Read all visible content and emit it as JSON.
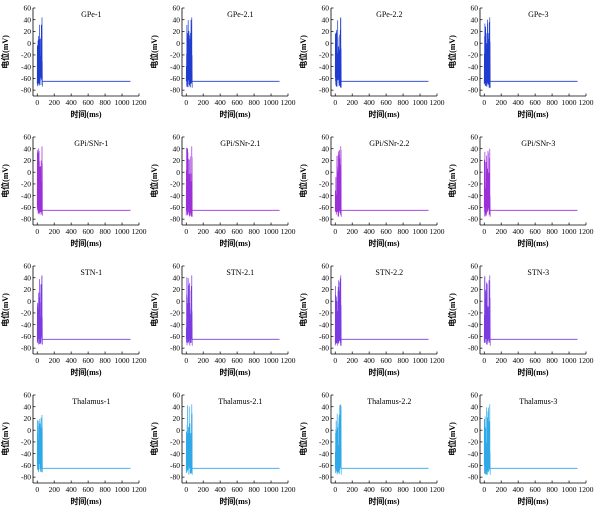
{
  "figure": {
    "xlabel": "时间(ms)",
    "ylabel": "电位(mV)",
    "xticks": [
      0,
      200,
      400,
      600,
      800,
      1000,
      1200
    ],
    "yticks": [
      60,
      40,
      20,
      0,
      -20,
      -40,
      -60,
      -80
    ],
    "xlim": [
      -50,
      1200
    ],
    "ylim": [
      -90,
      60
    ]
  },
  "chart_data": [
    {
      "type": "line",
      "title": "GPe-1",
      "xlabel": "时间(ms)",
      "ylabel": "电位(mV)",
      "xlim": [
        -50,
        1200
      ],
      "ylim": [
        -90,
        60
      ],
      "color": "#1f3ccf",
      "series": [
        {
          "burst_x": [
            0,
            60
          ],
          "burst_max": 44,
          "burst_min": -74,
          "steady_x": [
            60,
            1100
          ],
          "steady_value": -65
        }
      ]
    },
    {
      "type": "line",
      "title": "GPe-2.1",
      "xlabel": "时间(ms)",
      "ylabel": "电位(mV)",
      "xlim": [
        -50,
        1200
      ],
      "ylim": [
        -90,
        60
      ],
      "color": "#1f3ccf",
      "series": [
        {
          "burst_x": [
            0,
            70
          ],
          "burst_max": 44,
          "burst_min": -76,
          "steady_x": [
            70,
            1100
          ],
          "steady_value": -65
        }
      ]
    },
    {
      "type": "line",
      "title": "GPe-2.2",
      "xlabel": "时间(ms)",
      "ylabel": "电位(mV)",
      "xlim": [
        -50,
        1200
      ],
      "ylim": [
        -90,
        60
      ],
      "color": "#1f3ccf",
      "series": [
        {
          "burst_x": [
            0,
            70
          ],
          "burst_max": 44,
          "burst_min": -76,
          "steady_x": [
            70,
            1100
          ],
          "steady_value": -65
        }
      ]
    },
    {
      "type": "line",
      "title": "GPe-3",
      "xlabel": "时间(ms)",
      "ylabel": "电位(mV)",
      "xlim": [
        -50,
        1200
      ],
      "ylim": [
        -90,
        60
      ],
      "color": "#1f3ccf",
      "series": [
        {
          "burst_x": [
            0,
            70
          ],
          "burst_max": 44,
          "burst_min": -76,
          "steady_x": [
            70,
            1100
          ],
          "steady_value": -65
        }
      ]
    },
    {
      "type": "line",
      "title": "GPi/SNr-1",
      "xlabel": "时间(ms)",
      "ylabel": "电位(mV)",
      "xlim": [
        -50,
        1200
      ],
      "ylim": [
        -90,
        60
      ],
      "color": "#9b30d9",
      "series": [
        {
          "burst_x": [
            0,
            60
          ],
          "burst_max": 44,
          "burst_min": -74,
          "steady_x": [
            60,
            1100
          ],
          "steady_value": -65
        }
      ]
    },
    {
      "type": "line",
      "title": "GPi/SNr-2.1",
      "xlabel": "时间(ms)",
      "ylabel": "电位(mV)",
      "xlim": [
        -50,
        1200
      ],
      "ylim": [
        -90,
        60
      ],
      "color": "#9b30d9",
      "series": [
        {
          "burst_x": [
            0,
            70
          ],
          "burst_max": 44,
          "burst_min": -76,
          "steady_x": [
            70,
            1100
          ],
          "steady_value": -65
        }
      ]
    },
    {
      "type": "line",
      "title": "GPi/SNr-2.2",
      "xlabel": "时间(ms)",
      "ylabel": "电位(mV)",
      "xlim": [
        -50,
        1200
      ],
      "ylim": [
        -90,
        60
      ],
      "color": "#9b30d9",
      "series": [
        {
          "burst_x": [
            0,
            70
          ],
          "burst_max": 44,
          "burst_min": -76,
          "steady_x": [
            70,
            1100
          ],
          "steady_value": -65
        }
      ]
    },
    {
      "type": "line",
      "title": "GPi/SNr-3",
      "xlabel": "时间(ms)",
      "ylabel": "电位(mV)",
      "xlim": [
        -50,
        1200
      ],
      "ylim": [
        -90,
        60
      ],
      "color": "#9b30d9",
      "series": [
        {
          "burst_x": [
            0,
            70
          ],
          "burst_max": 40,
          "burst_min": -76,
          "steady_x": [
            70,
            1100
          ],
          "steady_value": -65
        }
      ]
    },
    {
      "type": "line",
      "title": "STN-1",
      "xlabel": "时间(ms)",
      "ylabel": "电位(mV)",
      "xlim": [
        -50,
        1200
      ],
      "ylim": [
        -90,
        60
      ],
      "color": "#7a3be0",
      "series": [
        {
          "burst_x": [
            0,
            60
          ],
          "burst_max": 44,
          "burst_min": -74,
          "steady_x": [
            60,
            1100
          ],
          "steady_value": -65
        }
      ]
    },
    {
      "type": "line",
      "title": "STN-2.1",
      "xlabel": "时间(ms)",
      "ylabel": "电位(mV)",
      "xlim": [
        -50,
        1200
      ],
      "ylim": [
        -90,
        60
      ],
      "color": "#7a3be0",
      "series": [
        {
          "burst_x": [
            0,
            70
          ],
          "burst_max": 44,
          "burst_min": -76,
          "steady_x": [
            70,
            1100
          ],
          "steady_value": -65
        }
      ]
    },
    {
      "type": "line",
      "title": "STN-2.2",
      "xlabel": "时间(ms)",
      "ylabel": "电位(mV)",
      "xlim": [
        -50,
        1200
      ],
      "ylim": [
        -90,
        60
      ],
      "color": "#7a3be0",
      "series": [
        {
          "burst_x": [
            0,
            70
          ],
          "burst_max": 44,
          "burst_min": -76,
          "steady_x": [
            70,
            1100
          ],
          "steady_value": -65
        }
      ]
    },
    {
      "type": "line",
      "title": "STN-3",
      "xlabel": "时间(ms)",
      "ylabel": "电位(mV)",
      "xlim": [
        -50,
        1200
      ],
      "ylim": [
        -90,
        60
      ],
      "color": "#7a3be0",
      "series": [
        {
          "burst_x": [
            0,
            70
          ],
          "burst_max": 44,
          "burst_min": -76,
          "steady_x": [
            70,
            1100
          ],
          "steady_value": -65
        }
      ]
    },
    {
      "type": "line",
      "title": "Thalamus-1",
      "xlabel": "时间(ms)",
      "ylabel": "电位(mV)",
      "xlim": [
        -50,
        1200
      ],
      "ylim": [
        -90,
        60
      ],
      "color": "#2fa8e8",
      "series": [
        {
          "burst_x": [
            0,
            60
          ],
          "burst_max": 26,
          "burst_min": -72,
          "steady_x": [
            60,
            1100
          ],
          "steady_value": -65
        }
      ]
    },
    {
      "type": "line",
      "title": "Thalamus-2.1",
      "xlabel": "时间(ms)",
      "ylabel": "电位(mV)",
      "xlim": [
        -50,
        1200
      ],
      "ylim": [
        -90,
        60
      ],
      "color": "#2fa8e8",
      "series": [
        {
          "burst_x": [
            0,
            70
          ],
          "burst_max": 44,
          "burst_min": -76,
          "steady_x": [
            70,
            1100
          ],
          "steady_value": -65
        }
      ]
    },
    {
      "type": "line",
      "title": "Thalamus-2.2",
      "xlabel": "时间(ms)",
      "ylabel": "电位(mV)",
      "xlim": [
        -50,
        1200
      ],
      "ylim": [
        -90,
        60
      ],
      "color": "#2fa8e8",
      "series": [
        {
          "burst_x": [
            0,
            70
          ],
          "burst_max": 44,
          "burst_min": -76,
          "steady_x": [
            70,
            1100
          ],
          "steady_value": -65
        }
      ]
    },
    {
      "type": "line",
      "title": "Thalamus-3",
      "xlabel": "时间(ms)",
      "ylabel": "电位(mV)",
      "xlim": [
        -50,
        1200
      ],
      "ylim": [
        -90,
        60
      ],
      "color": "#2fa8e8",
      "series": [
        {
          "burst_x": [
            0,
            70
          ],
          "burst_max": 44,
          "burst_min": -76,
          "steady_x": [
            70,
            1100
          ],
          "steady_value": -65
        }
      ]
    }
  ]
}
